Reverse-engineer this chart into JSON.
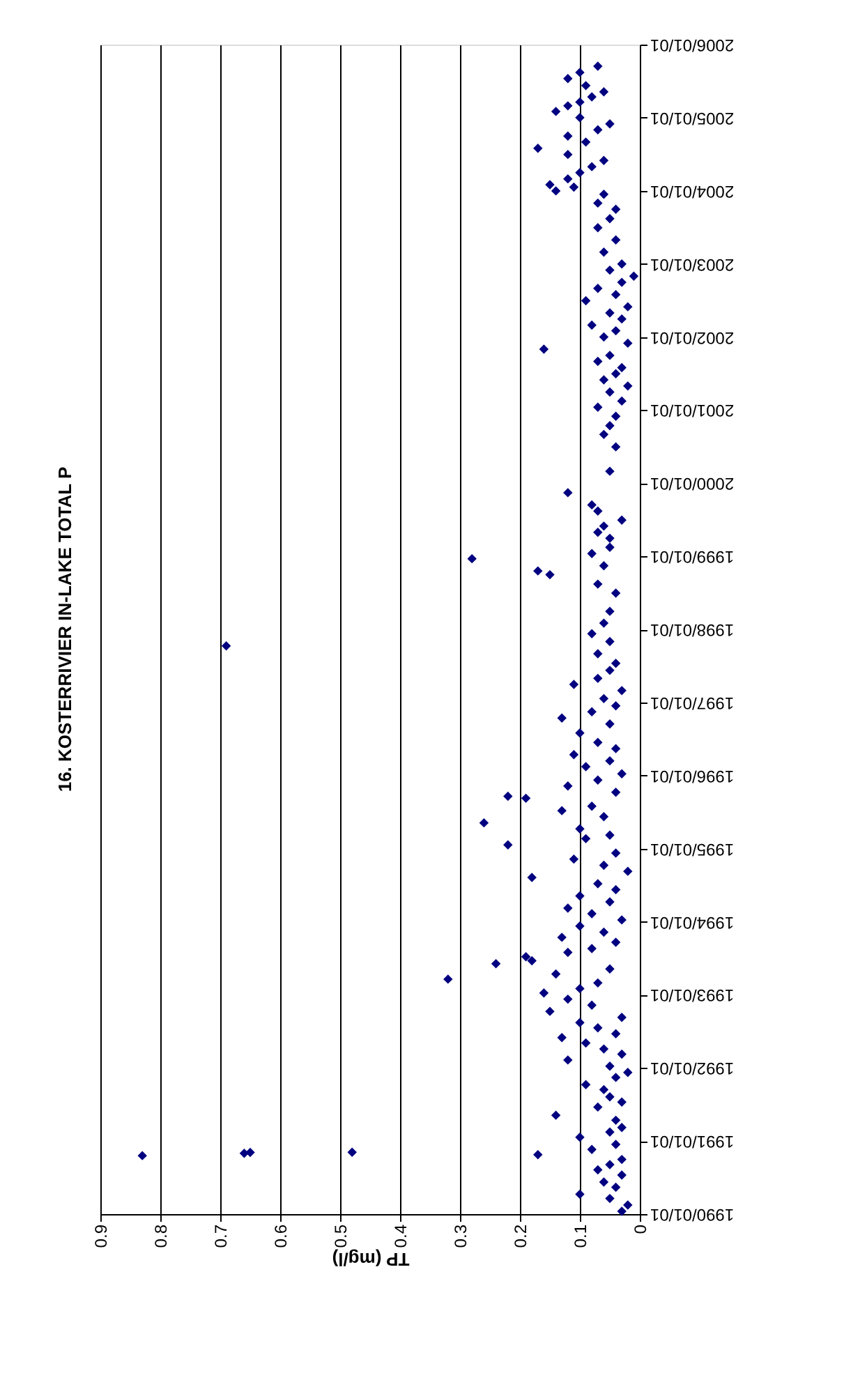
{
  "chart_data": {
    "type": "scatter",
    "orientation": "horizontal",
    "title": "16. KOSTERRIVIER IN-LAKE TOTAL P",
    "xlabel": "TP (mg/l)",
    "x": [
      "1990-01-15",
      "1990-02-15",
      "1990-03-20",
      "1990-04-10",
      "1990-05-15",
      "1990-06-10",
      "1990-07-15",
      "1990-08-10",
      "1990-09-05",
      "1990-10-01",
      "1990-10-20",
      "1990-10-25",
      "1990-11-01",
      "1990-11-05",
      "1990-11-06",
      "1990-11-20",
      "1990-12-15",
      "1991-01-20",
      "1991-02-15",
      "1991-03-10",
      "1991-04-15",
      "1991-05-10",
      "1991-06-20",
      "1991-07-15",
      "1991-08-10",
      "1991-09-15",
      "1991-10-10",
      "1991-11-15",
      "1991-12-10",
      "1992-01-10",
      "1992-02-10",
      "1992-03-10",
      "1992-04-05",
      "1992-05-05",
      "1992-06-01",
      "1992-06-20",
      "1992-07-20",
      "1992-08-15",
      "1992-09-10",
      "1992-10-10",
      "1992-11-10",
      "1992-12-10",
      "1993-01-10",
      "1993-02-01",
      "1993-03-01",
      "1993-03-20",
      "1993-04-15",
      "1993-05-10",
      "1993-06-05",
      "1993-06-20",
      "1993-07-10",
      "1993-08-01",
      "1993-08-20",
      "1993-09-20",
      "1993-10-15",
      "1993-11-10",
      "1993-12-10",
      "1994-01-10",
      "1994-02-10",
      "1994-03-10",
      "1994-04-10",
      "1994-05-10",
      "1994-06-10",
      "1994-07-10",
      "1994-08-10",
      "1994-09-10",
      "1994-10-10",
      "1994-11-10",
      "1994-12-10",
      "1995-01-20",
      "1995-02-20",
      "1995-03-10",
      "1995-04-10",
      "1995-05-10",
      "1995-06-10",
      "1995-07-10",
      "1995-08-01",
      "1995-09-10",
      "1995-09-20",
      "1995-10-10",
      "1995-11-10",
      "1995-12-10",
      "1996-01-10",
      "1996-02-15",
      "1996-03-15",
      "1996-04-15",
      "1996-05-15",
      "1996-06-15",
      "1996-08-01",
      "1996-09-15",
      "1996-10-15",
      "1996-11-15",
      "1996-12-15",
      "1997-01-20",
      "1997-03-01",
      "1997-04-01",
      "1997-05-01",
      "1997-06-10",
      "1997-07-15",
      "1997-09-01",
      "1997-10-10",
      "1997-11-01",
      "1997-12-10",
      "1998-02-01",
      "1998-04-01",
      "1998-07-01",
      "1998-08-15",
      "1998-10-01",
      "1998-10-20",
      "1998-11-15",
      "1998-12-20",
      "1999-01-15",
      "1999-02-15",
      "1999-04-01",
      "1999-05-01",
      "1999-06-01",
      "1999-07-01",
      "1999-08-15",
      "1999-09-15",
      "1999-11-15",
      "2000-03-01",
      "2000-07-01",
      "2000-09-01",
      "2000-10-15",
      "2000-12-01",
      "2001-01-15",
      "2001-02-15",
      "2001-04-01",
      "2001-05-01",
      "2001-06-01",
      "2001-07-01",
      "2001-08-01",
      "2001-09-01",
      "2001-10-01",
      "2001-11-01",
      "2001-12-01",
      "2002-01-01",
      "2002-02-01",
      "2002-03-01",
      "2002-04-01",
      "2002-05-01",
      "2002-06-01",
      "2002-07-01",
      "2002-08-01",
      "2002-09-01",
      "2002-10-01",
      "2002-11-01",
      "2002-12-01",
      "2003-01-01",
      "2003-03-01",
      "2003-05-01",
      "2003-07-01",
      "2003-08-15",
      "2003-10-01",
      "2003-11-01",
      "2003-12-15",
      "2004-01-01",
      "2004-01-20",
      "2004-02-01",
      "2004-03-01",
      "2004-04-01",
      "2004-05-01",
      "2004-06-01",
      "2004-07-01",
      "2004-08-01",
      "2004-09-01",
      "2004-10-01",
      "2004-11-01",
      "2004-12-01",
      "2005-01-01",
      "2005-02-01",
      "2005-03-01",
      "2005-03-20",
      "2005-04-15",
      "2005-05-10",
      "2005-06-10",
      "2005-07-15",
      "2005-08-15",
      "2005-09-15"
    ],
    "series": [
      {
        "color": "#000080",
        "values": [
          0.03,
          0.02,
          0.05,
          0.1,
          0.04,
          0.06,
          0.03,
          0.07,
          0.05,
          0.03,
          0.83,
          0.17,
          0.66,
          0.65,
          0.48,
          0.08,
          0.04,
          0.1,
          0.05,
          0.03,
          0.04,
          0.14,
          0.07,
          0.03,
          0.05,
          0.06,
          0.09,
          0.04,
          0.02,
          0.05,
          0.12,
          0.03,
          0.06,
          0.09,
          0.13,
          0.04,
          0.07,
          0.1,
          0.03,
          0.15,
          0.08,
          0.12,
          0.16,
          0.1,
          0.07,
          0.32,
          0.14,
          0.05,
          0.24,
          0.18,
          0.19,
          0.12,
          0.08,
          0.04,
          0.13,
          0.06,
          0.1,
          0.03,
          0.08,
          0.12,
          0.05,
          0.1,
          0.04,
          0.07,
          0.18,
          0.02,
          0.06,
          0.11,
          0.04,
          0.22,
          0.09,
          0.05,
          0.1,
          0.26,
          0.06,
          0.13,
          0.08,
          0.19,
          0.22,
          0.04,
          0.12,
          0.07,
          0.03,
          0.09,
          0.05,
          0.11,
          0.04,
          0.07,
          0.1,
          0.05,
          0.13,
          0.08,
          0.04,
          0.06,
          0.03,
          0.11,
          0.07,
          0.05,
          0.04,
          0.07,
          0.69,
          0.05,
          0.08,
          0.06,
          0.05,
          0.04,
          0.07,
          0.15,
          0.17,
          0.06,
          0.28,
          0.08,
          0.05,
          0.05,
          0.07,
          0.06,
          0.03,
          0.07,
          0.08,
          0.12,
          0.05,
          0.04,
          0.06,
          0.05,
          0.04,
          0.07,
          0.03,
          0.05,
          0.02,
          0.06,
          0.04,
          0.03,
          0.07,
          0.05,
          0.16,
          0.02,
          0.06,
          0.04,
          0.08,
          0.03,
          0.05,
          0.02,
          0.09,
          0.04,
          0.07,
          0.03,
          0.01,
          0.05,
          0.03,
          0.06,
          0.04,
          0.07,
          0.05,
          0.04,
          0.07,
          0.06,
          0.14,
          0.11,
          0.15,
          0.12,
          0.1,
          0.08,
          0.06,
          0.12,
          0.17,
          0.09,
          0.12,
          0.07,
          0.05,
          0.1,
          0.14,
          0.12,
          0.1,
          0.08,
          0.06,
          0.09,
          0.12,
          0.1,
          0.07
        ]
      }
    ],
    "xlim": [
      0.9,
      0
    ],
    "xticks": [
      0.9,
      0.8,
      0.7,
      0.6,
      0.5,
      0.4,
      0.3,
      0.2,
      0.1,
      0
    ],
    "ylim": [
      "1990-01-01",
      "2006-01-01"
    ],
    "yticks": [
      {
        "value": "1990-01-01",
        "label": "1990/01/01"
      },
      {
        "value": "1991-01-01",
        "label": "1991/01/01"
      },
      {
        "value": "1992-01-01",
        "label": "1992/01/01"
      },
      {
        "value": "1993-01-01",
        "label": "1993/01/01"
      },
      {
        "value": "1994-01-01",
        "label": "1994/01/01"
      },
      {
        "value": "1995-01-01",
        "label": "1995/01/01"
      },
      {
        "value": "1996-01-01",
        "label": "1996/01/01"
      },
      {
        "value": "1997-01-01",
        "label": "1997/01/01"
      },
      {
        "value": "1998-01-01",
        "label": "1998/01/01"
      },
      {
        "value": "1999-01-01",
        "label": "1999/01/01"
      },
      {
        "value": "2000-01-01",
        "label": "2000/01/01"
      },
      {
        "value": "2001-01-01",
        "label": "2001/01/01"
      },
      {
        "value": "2002-01-01",
        "label": "2002/01/01"
      },
      {
        "value": "2003-01-01",
        "label": "2003/01/01"
      },
      {
        "value": "2004-01-01",
        "label": "2004/01/01"
      },
      {
        "value": "2005-01-01",
        "label": "2005/01/01"
      },
      {
        "value": "2006-01-01",
        "label": "2006/01/01"
      }
    ],
    "grid": "x",
    "marker": "diamond",
    "legend": false
  }
}
